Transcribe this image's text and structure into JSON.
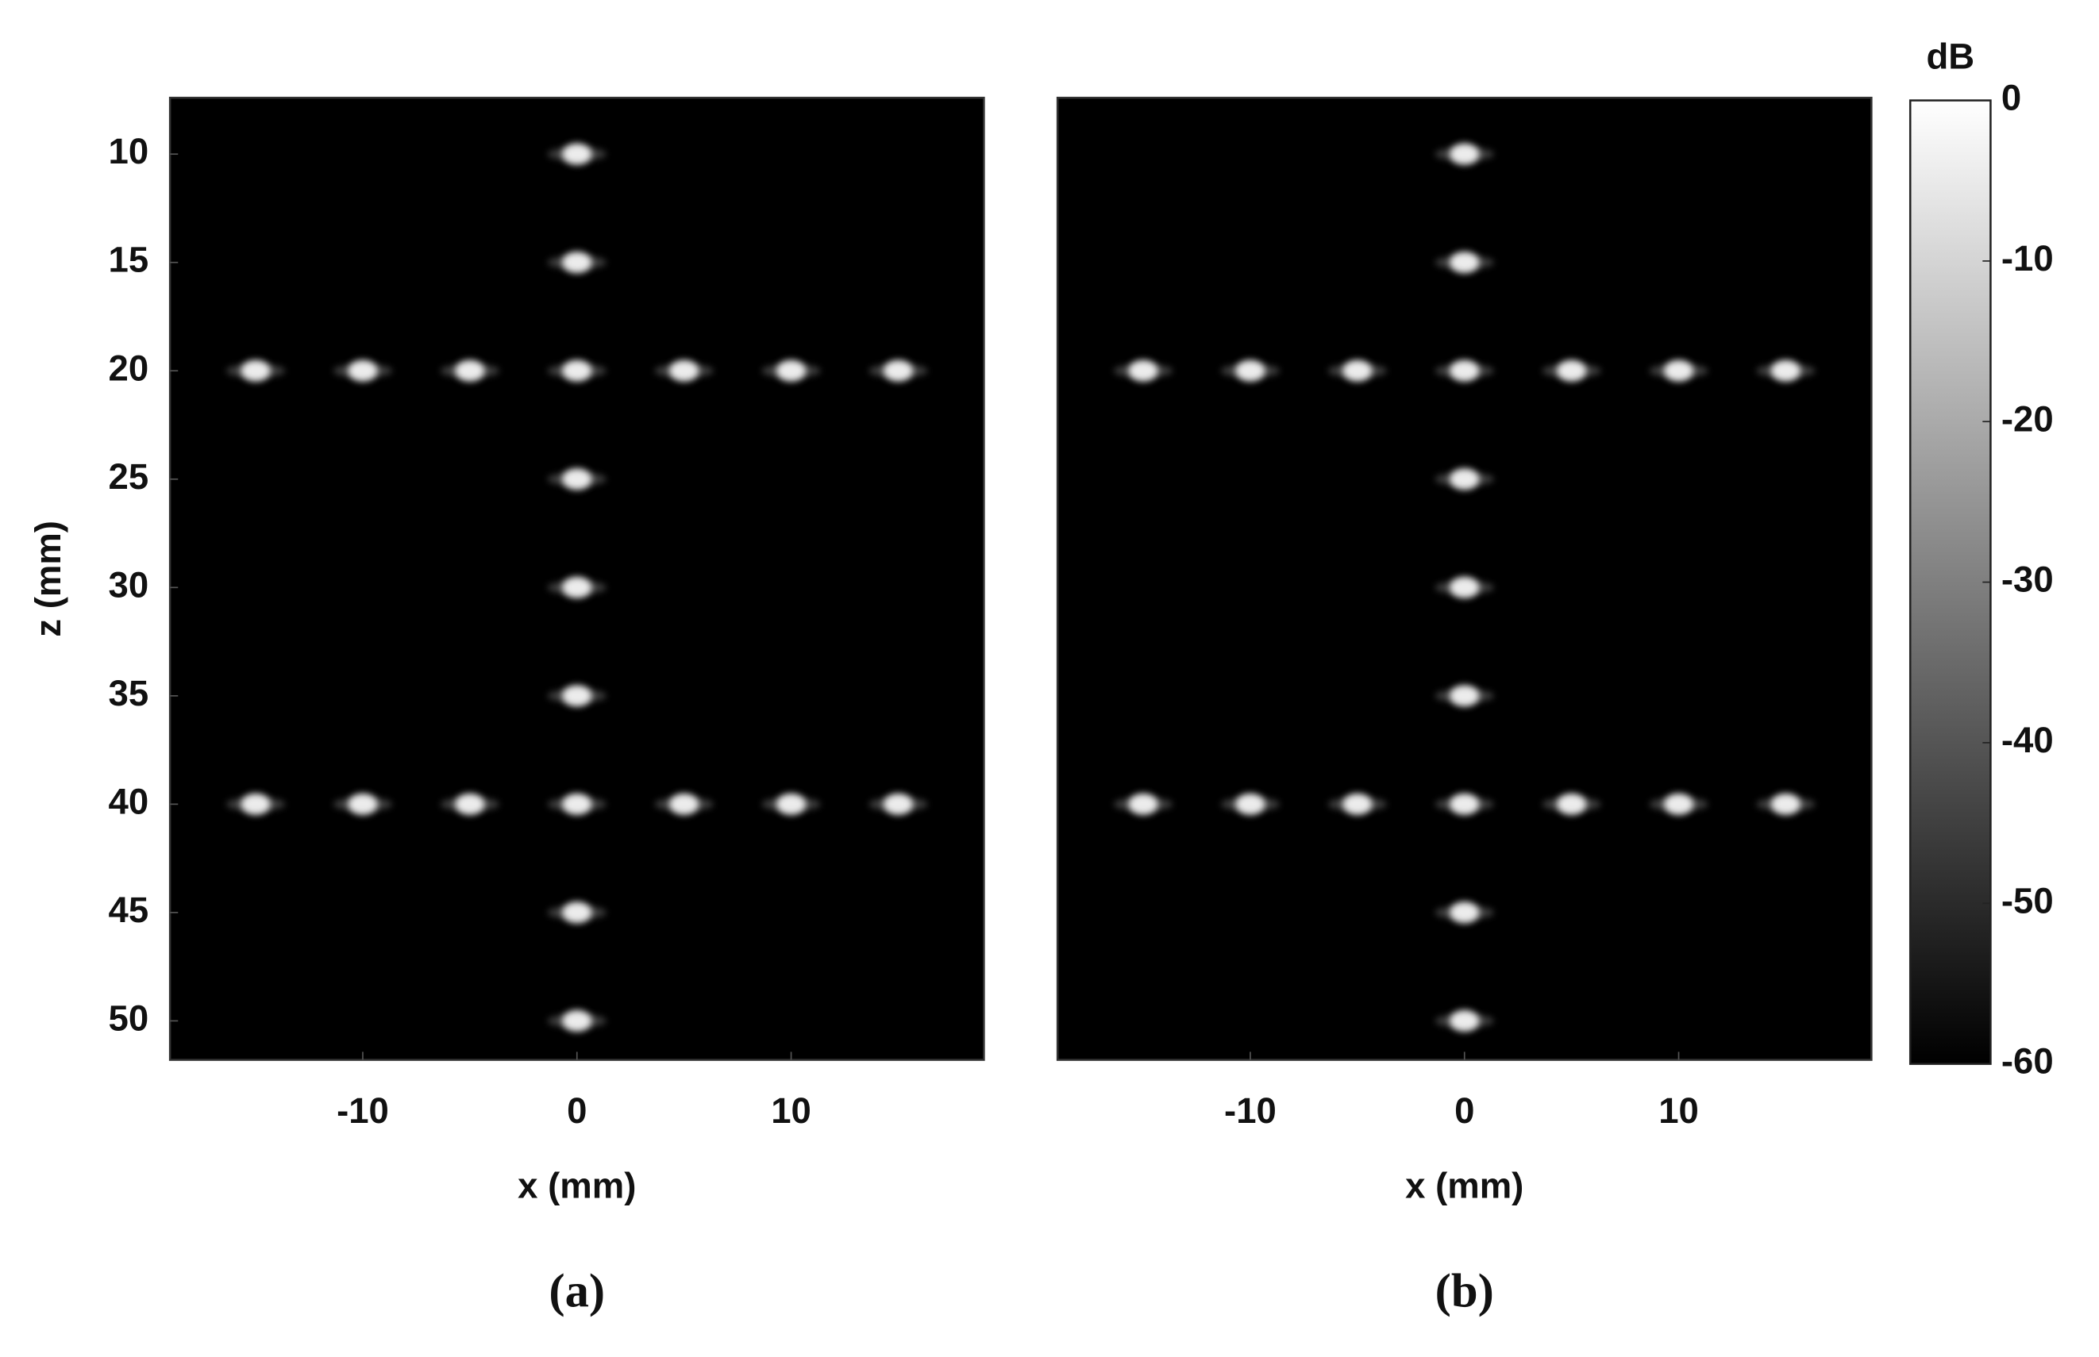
{
  "chart_data": [
    {
      "type": "scatter",
      "panel_label": "(a)",
      "xlabel": "x (mm)",
      "ylabel": "z (mm)",
      "xlim": [
        -19,
        19
      ],
      "ylim": [
        7.4,
        51.8
      ],
      "yaxis_reversed": true,
      "xticks": [
        -10,
        0,
        10
      ],
      "yticks": [
        10,
        15,
        20,
        25,
        30,
        35,
        40,
        45,
        50
      ],
      "background": "#000000",
      "color": "#ffffff",
      "x": [
        0,
        0,
        -15,
        -10,
        -5,
        0,
        5,
        10,
        15,
        0,
        0,
        0,
        -15,
        -10,
        -5,
        0,
        5,
        10,
        15,
        0,
        0
      ],
      "y": [
        10,
        15,
        20,
        20,
        20,
        20,
        20,
        20,
        20,
        25,
        30,
        35,
        40,
        40,
        40,
        40,
        40,
        40,
        40,
        45,
        50
      ]
    },
    {
      "type": "scatter",
      "panel_label": "(b)",
      "xlabel": "x (mm)",
      "xlim": [
        -19,
        19
      ],
      "ylim": [
        7.4,
        51.8
      ],
      "yaxis_reversed": true,
      "xticks": [
        -10,
        0,
        10
      ],
      "background": "#000000",
      "color": "#ffffff",
      "x": [
        0,
        0,
        -15,
        -10,
        -5,
        0,
        5,
        10,
        15,
        0,
        0,
        0,
        -15,
        -10,
        -5,
        0,
        5,
        10,
        15,
        0,
        0
      ],
      "y": [
        10,
        15,
        20,
        20,
        20,
        20,
        20,
        20,
        20,
        25,
        30,
        35,
        40,
        40,
        40,
        40,
        40,
        40,
        40,
        45,
        50
      ]
    }
  ],
  "colorbar": {
    "label": "dB",
    "lim": [
      -60,
      0
    ],
    "ticks": [
      0,
      -10,
      -20,
      -30,
      -40,
      -50,
      -60
    ],
    "colors": [
      "#000000",
      "#ffffff"
    ]
  }
}
